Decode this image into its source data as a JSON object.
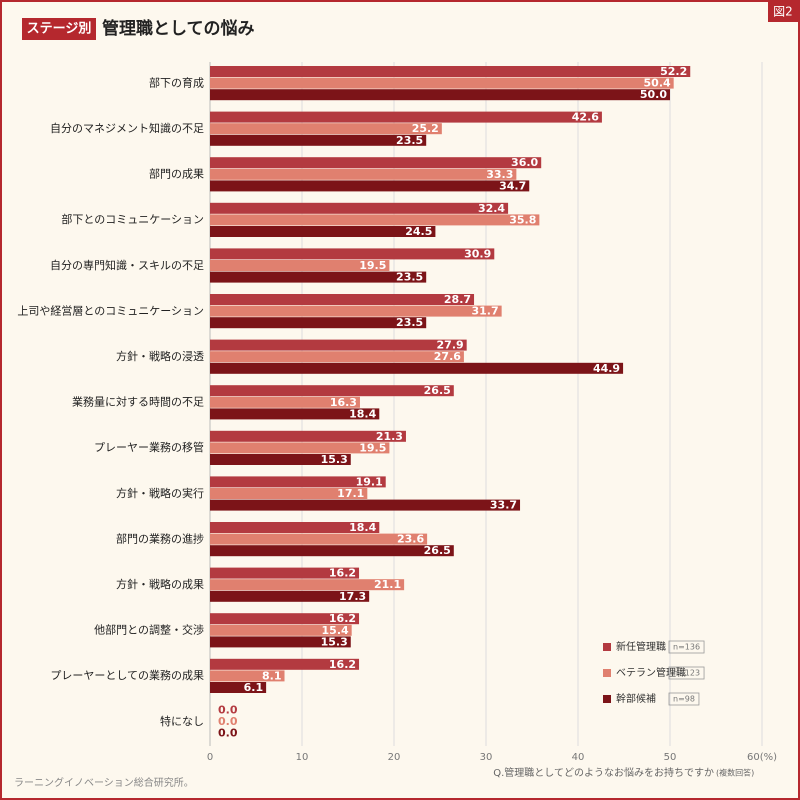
{
  "chart_data": {
    "type": "hbar",
    "badge": "ステージ別",
    "title": "管理職としての悩み",
    "figure_label": "図2",
    "categories": [
      "部下の育成",
      "自分のマネジメント知識の不足",
      "部門の成果",
      "部下とのコミュニケーション",
      "自分の専門知識・スキルの不足",
      "上司や経営層とのコミュニケーション",
      "方針・戦略の浸透",
      "業務量に対する時間の不足",
      "プレーヤー業務の移管",
      "方針・戦略の実行",
      "部門の業務の進捗",
      "方針・戦略の成果",
      "他部門との調整・交渉",
      "プレーヤーとしての業務の成果",
      "特になし"
    ],
    "series": [
      {
        "name": "新任管理職",
        "n": "n=136",
        "color": "#b33a40",
        "values": [
          52.2,
          42.6,
          36.0,
          32.4,
          30.9,
          28.7,
          27.9,
          26.5,
          21.3,
          19.1,
          18.4,
          16.2,
          16.2,
          16.2,
          0.0
        ],
        "value_labels": [
          "52.2",
          "42.6",
          "36.0",
          "32.4",
          "30.9",
          "28.7",
          "27.9",
          "26.5",
          "21.3",
          "19.1",
          "18.4",
          "16.2",
          "16.2",
          "16.2",
          "0.0"
        ]
      },
      {
        "name": "ベテラン管理職",
        "n": "n=123",
        "color": "#e0806f",
        "values": [
          50.4,
          25.2,
          33.3,
          35.8,
          19.5,
          31.7,
          27.6,
          16.3,
          19.5,
          17.1,
          23.6,
          21.1,
          15.4,
          8.1,
          0.0
        ],
        "value_labels": [
          "50.4",
          "25.2",
          "33.3",
          "35.8",
          "19.5",
          "31.7",
          "27.6",
          "16.3",
          "19.5",
          "17.1",
          "23.6",
          "21.1",
          "15.4",
          "8.1",
          "0.0"
        ]
      },
      {
        "name": "幹部候補",
        "n": "n=98",
        "color": "#7c1418",
        "values": [
          50.0,
          23.5,
          34.7,
          24.5,
          23.5,
          23.5,
          44.9,
          18.4,
          15.3,
          33.7,
          26.5,
          17.3,
          15.3,
          6.1,
          0.0
        ],
        "value_labels": [
          "50.0",
          "23.5",
          "34.7",
          "24.5",
          "23.5",
          "23.5",
          "44.9",
          "18.4",
          "15.3",
          "33.7",
          "26.5",
          "17.3",
          "15.3",
          "6.1",
          "0.0"
        ]
      }
    ],
    "xlim": [
      0,
      60
    ],
    "xticks": [
      0,
      10,
      20,
      30,
      40,
      50,
      {
        "value": 60,
        "label": "60(%)"
      }
    ],
    "grid": true,
    "question": "Q.管理職としてどのようなお悩みをお持ちですか",
    "question_note": "(複数回答)",
    "source": "ラーニングイノベーション総合研究所。"
  }
}
